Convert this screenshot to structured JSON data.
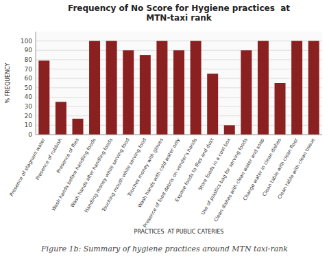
{
  "chart_data": {
    "type": "bar",
    "title": "Frequency of No Score for Hygiene practices  at\nMTN-taxi rank",
    "xlabel": "PRACTICES  AT PUBLIC CATERIES",
    "ylabel": "% FREQUENCY",
    "caption": "Figure 1b: Summary of hygiene practices around MTN taxi-rank",
    "categories": [
      "Presence of stagnant water",
      "Presence of rubbish",
      "Presence of flies",
      "Wash hands before handling foods",
      "Wash hands after handling foods",
      "Handling money while serving food",
      "Touching mouth while serving food",
      "Touches money with gloves",
      "Wash hands with cold water only",
      "Presence of food debris on vendor's hands",
      "Expose foods to flies and dust",
      "Store foods in a cool box",
      "Use of plastics bag for serving foods",
      "Clean dishes with clean water and soap",
      "Change water in clean dishes",
      "Clean table with clean floor",
      "Clean table with clean tissue"
    ],
    "values": [
      79,
      35,
      17,
      100,
      100,
      90,
      85,
      100,
      90,
      100,
      65,
      10,
      90,
      100,
      55,
      100,
      100
    ],
    "color": "#8B2020",
    "ylim": [
      0,
      110
    ],
    "yticks": [
      0,
      10,
      20,
      30,
      40,
      50,
      60,
      70,
      80,
      90,
      100
    ],
    "grid": true
  }
}
